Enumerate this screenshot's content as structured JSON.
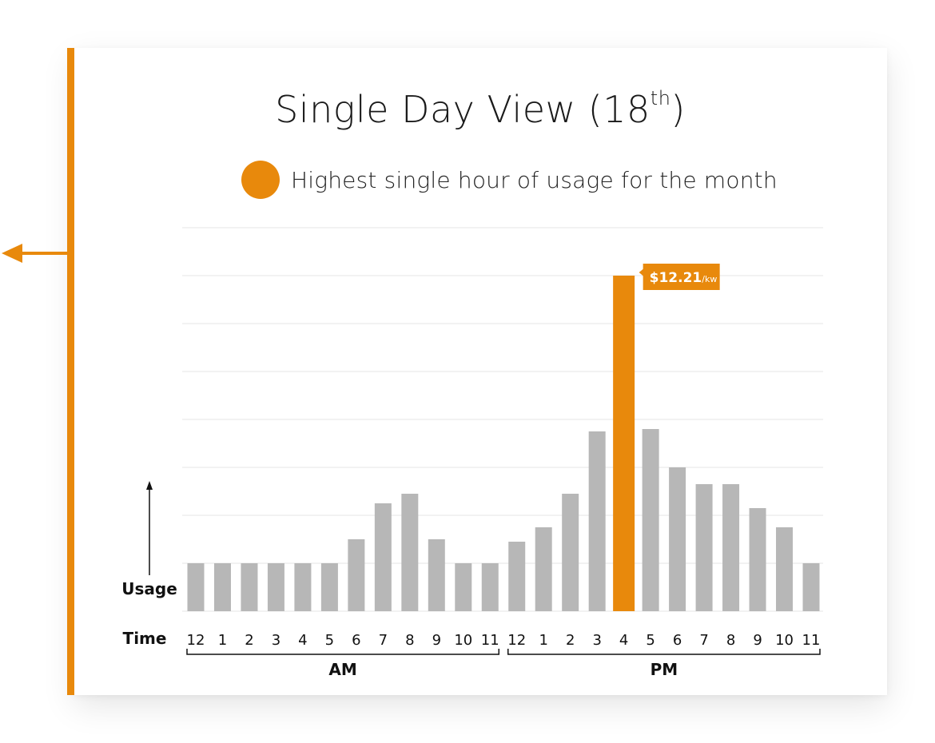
{
  "header": {
    "title_main": "Single Day View (18",
    "title_sup": "th",
    "title_end": ")"
  },
  "legend": {
    "label": "Highest single hour of usage for the month"
  },
  "colors": {
    "accent": "#e8890c",
    "bar": "#b7b7b7",
    "grid": "#e6e6e6",
    "text": "#1a1a1a"
  },
  "chart_data": {
    "type": "bar",
    "title": "Single Day View (18th)",
    "legend": [
      "Highest single hour of usage for the month"
    ],
    "legend_position": "top-center",
    "grid": true,
    "ylabel": "Usage",
    "xlabel": "Time",
    "categories": [
      "12",
      "1",
      "2",
      "3",
      "4",
      "5",
      "6",
      "7",
      "8",
      "9",
      "10",
      "11",
      "12",
      "1",
      "2",
      "3",
      "4",
      "5",
      "6",
      "7",
      "8",
      "9",
      "10",
      "11"
    ],
    "groups": [
      {
        "label": "AM",
        "from": 0,
        "to": 11
      },
      {
        "label": "PM",
        "from": 12,
        "to": 23
      }
    ],
    "values": [
      1,
      1,
      1,
      1,
      1,
      1,
      1.5,
      2.25,
      2.45,
      1.5,
      1,
      1,
      1.45,
      1.75,
      2.45,
      3.75,
      7,
      3.8,
      3,
      2.65,
      2.65,
      2.15,
      1.75,
      1
    ],
    "ylim": [
      0,
      8
    ],
    "highlight_index": 16,
    "annotation": {
      "index": 16,
      "value": "$12.21",
      "unit": "/kw"
    }
  }
}
